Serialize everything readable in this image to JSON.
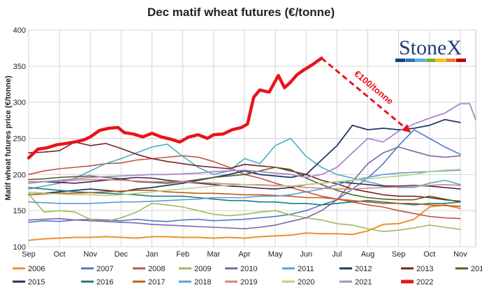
{
  "chart_data": {
    "type": "line",
    "title": "Dec matif wheat futures (€/tonne)",
    "ylabel": "Matif wheat futures price (€/tonne)",
    "xlabel": "",
    "ylim": [
      100,
      400
    ],
    "yticks": [
      100,
      150,
      200,
      250,
      300,
      350,
      400
    ],
    "xlim": [
      0,
      14.5
    ],
    "xticks": [
      "Sep",
      "Oct",
      "Nov",
      "Dec",
      "Jan",
      "Feb",
      "Mar",
      "Apr",
      "May",
      "Jun",
      "Jul",
      "Aug",
      "Sep",
      "Oct",
      "Nov"
    ],
    "grid": true,
    "legend_position": "bottom",
    "annotation": {
      "text": "€100/tonne",
      "from": [
        9.5,
        361
      ],
      "to": [
        12.4,
        258
      ]
    },
    "logo": "StoneX",
    "series": [
      {
        "name": "2006",
        "color": "#f28e2b",
        "width": 2,
        "x": [
          0,
          0.5,
          1,
          1.5,
          2,
          2.5,
          3,
          3.5,
          4,
          4.5,
          5,
          5.5,
          6,
          6.5,
          7,
          7.5,
          8,
          8.5,
          9,
          9.5,
          10,
          10.5,
          11,
          11.5,
          12,
          12.5,
          13,
          13.5,
          14
        ],
        "y": [
          109,
          111,
          112,
          113,
          113,
          114,
          113,
          112,
          114,
          114,
          113,
          113,
          112,
          113,
          112,
          114,
          115,
          116,
          119,
          118,
          118,
          117,
          122,
          131,
          132,
          138,
          155,
          158,
          153
        ]
      },
      {
        "name": "2007",
        "color": "#4e79c9",
        "width": 1.6,
        "x": [
          0,
          0.5,
          1,
          1.5,
          2,
          2.5,
          3,
          3.5,
          4,
          4.5,
          5,
          5.5,
          6,
          6.5,
          7,
          7.5,
          8,
          8.5,
          9,
          9.5,
          10,
          10.5,
          11,
          11.5,
          12,
          12.5,
          13,
          13.5,
          14
        ],
        "y": [
          134,
          136,
          135,
          137,
          138,
          137,
          136,
          138,
          136,
          135,
          137,
          138,
          136,
          137,
          138,
          140,
          142,
          145,
          150,
          158,
          165,
          180,
          195,
          215,
          240,
          262,
          250,
          238,
          228
        ]
      },
      {
        "name": "2008",
        "color": "#c0504d",
        "width": 1.6,
        "x": [
          0,
          0.5,
          1,
          1.5,
          2,
          2.5,
          3,
          3.5,
          4,
          4.5,
          5,
          5.5,
          6,
          6.5,
          7,
          7.5,
          8,
          8.5,
          9,
          9.5,
          10,
          10.5,
          11,
          11.5,
          12,
          12.5,
          13,
          13.5,
          14
        ],
        "y": [
          200,
          205,
          208,
          210,
          212,
          215,
          216,
          220,
          222,
          224,
          226,
          224,
          218,
          210,
          200,
          195,
          188,
          182,
          176,
          170,
          166,
          162,
          158,
          155,
          150,
          146,
          142,
          140,
          139
        ]
      },
      {
        "name": "2009",
        "color": "#9bbb59",
        "width": 1.6,
        "x": [
          0,
          0.5,
          1,
          1.5,
          2,
          2.5,
          3,
          3.5,
          4,
          4.5,
          5,
          5.5,
          6,
          6.5,
          7,
          7.5,
          8,
          8.5,
          9,
          9.5,
          10,
          10.5,
          11,
          11.5,
          12,
          12.5,
          13,
          13.5,
          14
        ],
        "y": [
          173,
          148,
          150,
          148,
          138,
          135,
          140,
          148,
          160,
          158,
          155,
          150,
          145,
          143,
          145,
          148,
          150,
          144,
          140,
          137,
          132,
          130,
          125,
          121,
          123,
          126,
          130,
          127,
          124
        ]
      },
      {
        "name": "2010",
        "color": "#8064a2",
        "width": 1.6,
        "x": [
          0,
          0.5,
          1,
          1.5,
          2,
          2.5,
          3,
          3.5,
          4,
          4.5,
          5,
          5.5,
          6,
          6.5,
          7,
          7.5,
          8,
          8.5,
          9,
          9.5,
          10,
          10.5,
          11,
          11.5,
          12,
          12.5,
          13,
          13.5,
          14
        ],
        "y": [
          137,
          138,
          139,
          137,
          136,
          135,
          134,
          133,
          131,
          130,
          129,
          128,
          127,
          126,
          125,
          127,
          130,
          135,
          140,
          150,
          165,
          190,
          215,
          230,
          238,
          232,
          226,
          224,
          226
        ]
      },
      {
        "name": "2011",
        "color": "#4bacc6",
        "width": 1.6,
        "x": [
          0,
          0.5,
          1,
          1.5,
          2,
          2.5,
          3,
          3.5,
          4,
          4.5,
          5,
          5.5,
          6,
          6.5,
          7,
          7.5,
          8,
          8.5,
          9,
          9.5,
          10,
          10.5,
          11,
          11.5,
          12,
          12.5,
          13,
          13.5,
          14
        ],
        "y": [
          180,
          184,
          188,
          195,
          205,
          215,
          222,
          230,
          238,
          242,
          225,
          210,
          200,
          205,
          222,
          215,
          240,
          250,
          225,
          210,
          200,
          195,
          190,
          185,
          182,
          182,
          188,
          192,
          186
        ]
      },
      {
        "name": "2012",
        "color": "#1f3864",
        "width": 1.8,
        "x": [
          0,
          0.5,
          1,
          1.5,
          2,
          2.5,
          3,
          3.5,
          4,
          4.5,
          5,
          5.5,
          6,
          6.5,
          7,
          7.5,
          8,
          8.5,
          9,
          9.5,
          10,
          10.5,
          11,
          11.5,
          12,
          12.5,
          13,
          13.5,
          14
        ],
        "y": [
          175,
          174,
          176,
          178,
          180,
          178,
          176,
          180,
          182,
          185,
          188,
          192,
          196,
          200,
          205,
          200,
          198,
          196,
          200,
          220,
          240,
          268,
          262,
          264,
          262,
          264,
          268,
          276,
          272
        ]
      },
      {
        "name": "2013",
        "color": "#7b2020",
        "width": 1.6,
        "x": [
          0,
          0.5,
          1,
          1.5,
          2,
          2.5,
          3,
          3.5,
          4,
          4.5,
          5,
          5.5,
          6,
          6.5,
          7,
          7.5,
          8,
          8.5,
          9,
          9.5,
          10,
          10.5,
          11,
          11.5,
          12,
          12.5,
          13,
          13.5,
          14
        ],
        "y": [
          230,
          231,
          233,
          245,
          240,
          243,
          236,
          228,
          222,
          218,
          215,
          212,
          210,
          208,
          214,
          212,
          210,
          205,
          200,
          192,
          187,
          180,
          176,
          172,
          170,
          170,
          168,
          165,
          163
        ]
      },
      {
        "name": "2014",
        "color": "#4f6228",
        "width": 1.6,
        "x": [
          0,
          0.5,
          1,
          1.5,
          2,
          2.5,
          3,
          3.5,
          4,
          4.5,
          5,
          5.5,
          6,
          6.5,
          7,
          7.5,
          8,
          8.5,
          9,
          9.5,
          10,
          10.5,
          11,
          11.5,
          12,
          12.5,
          13,
          13.5,
          14
        ],
        "y": [
          193,
          194,
          196,
          197,
          198,
          196,
          194,
          190,
          189,
          188,
          190,
          193,
          196,
          198,
          200,
          205,
          210,
          207,
          195,
          186,
          178,
          172,
          168,
          166,
          165,
          165,
          170,
          166,
          162
        ]
      },
      {
        "name": "2015",
        "color": "#3f1f5f",
        "width": 1.6,
        "x": [
          0,
          0.5,
          1,
          1.5,
          2,
          2.5,
          3,
          3.5,
          4,
          4.5,
          5,
          5.5,
          6,
          6.5,
          7,
          7.5,
          8,
          8.5,
          9,
          9.5,
          10,
          10.5,
          11,
          11.5,
          12,
          12.5,
          13,
          13.5,
          14
        ],
        "y": [
          190,
          190,
          189,
          188,
          190,
          192,
          194,
          196,
          195,
          192,
          190,
          188,
          186,
          184,
          183,
          181,
          180,
          182,
          186,
          188,
          190,
          188,
          186,
          184,
          184,
          185,
          184,
          182,
          180
        ]
      },
      {
        "name": "2016",
        "color": "#1f7a7a",
        "width": 1.6,
        "x": [
          0,
          0.5,
          1,
          1.5,
          2,
          2.5,
          3,
          3.5,
          4,
          4.5,
          5,
          5.5,
          6,
          6.5,
          7,
          7.5,
          8,
          8.5,
          9,
          9.5,
          10,
          10.5,
          11,
          11.5,
          12,
          12.5,
          13,
          13.5,
          14
        ],
        "y": [
          182,
          180,
          178,
          176,
          175,
          174,
          173,
          172,
          170,
          170,
          170,
          168,
          166,
          164,
          164,
          162,
          162,
          160,
          160,
          158,
          160,
          162,
          164,
          162,
          160,
          158,
          160,
          160,
          162
        ]
      },
      {
        "name": "2017",
        "color": "#c55a11",
        "width": 1.6,
        "x": [
          0,
          0.5,
          1,
          1.5,
          2,
          2.5,
          3,
          3.5,
          4,
          4.5,
          5,
          5.5,
          6,
          6.5,
          7,
          7.5,
          8,
          8.5,
          9,
          9.5,
          10,
          10.5,
          11,
          11.5,
          12,
          12.5,
          13,
          13.5,
          14
        ],
        "y": [
          172,
          173,
          174,
          174,
          175,
          176,
          177,
          178,
          178,
          176,
          175,
          174,
          174,
          173,
          172,
          172,
          171,
          170,
          168,
          168,
          166,
          164,
          162,
          160,
          160,
          160,
          158,
          157,
          156
        ]
      },
      {
        "name": "2018",
        "color": "#5b9bd5",
        "width": 1.6,
        "x": [
          0,
          0.5,
          1,
          1.5,
          2,
          2.5,
          3,
          3.5,
          4,
          4.5,
          5,
          5.5,
          6,
          6.5,
          7,
          7.5,
          8,
          8.5,
          9,
          9.5,
          10,
          10.5,
          11,
          11.5,
          12,
          12.5,
          13,
          13.5,
          14
        ],
        "y": [
          162,
          161,
          160,
          160,
          160,
          161,
          162,
          162,
          163,
          164,
          165,
          166,
          168,
          168,
          168,
          170,
          170,
          172,
          176,
          180,
          186,
          192,
          196,
          200,
          202,
          203,
          204,
          205,
          206
        ]
      },
      {
        "name": "2019",
        "color": "#d98078",
        "width": 1.6,
        "x": [
          0,
          0.5,
          1,
          1.5,
          2,
          2.5,
          3,
          3.5,
          4,
          4.5,
          5,
          5.5,
          6,
          6.5,
          7,
          7.5,
          8,
          8.5,
          9,
          9.5,
          10,
          10.5,
          11,
          11.5,
          12,
          12.5,
          13,
          13.5,
          14
        ],
        "y": [
          190,
          190,
          191,
          192,
          193,
          193,
          192,
          191,
          190,
          190,
          190,
          189,
          188,
          187,
          186,
          186,
          185,
          184,
          182,
          181,
          180,
          180,
          181,
          182,
          183,
          184,
          185,
          186,
          185
        ]
      },
      {
        "name": "2020",
        "color": "#b5d37e",
        "width": 1.6,
        "x": [
          0,
          0.5,
          1,
          1.5,
          2,
          2.5,
          3,
          3.5,
          4,
          4.5,
          5,
          5.5,
          6,
          6.5,
          7,
          7.5,
          8,
          8.5,
          9,
          9.5,
          10,
          10.5,
          11,
          11.5,
          12,
          12.5,
          13,
          13.5,
          14
        ],
        "y": [
          175,
          174,
          173,
          172,
          172,
          171,
          172,
          174,
          176,
          178,
          180,
          182,
          184,
          185,
          186,
          185,
          184,
          184,
          186,
          188,
          190,
          192,
          194,
          196,
          198,
          200,
          204,
          206,
          207
        ]
      },
      {
        "name": "2021",
        "color": "#a78bc9",
        "width": 1.8,
        "x": [
          0,
          0.5,
          1,
          1.5,
          2,
          2.5,
          3,
          3.5,
          4,
          4.5,
          5,
          5.5,
          6,
          6.5,
          7,
          7.5,
          8,
          8.5,
          9,
          9.5,
          10,
          10.5,
          11,
          11.5,
          12,
          12.5,
          13,
          13.5,
          14,
          14.3,
          14.5
        ],
        "y": [
          188,
          190,
          192,
          194,
          196,
          197,
          198,
          199,
          200,
          200,
          201,
          202,
          204,
          205,
          206,
          204,
          202,
          200,
          196,
          200,
          210,
          230,
          250,
          245,
          260,
          270,
          278,
          285,
          298,
          298,
          276
        ]
      },
      {
        "name": "2022",
        "color": "#e8141b",
        "width": 4.5,
        "x": [
          0,
          0.3,
          0.6,
          0.9,
          1.2,
          1.5,
          1.8,
          2,
          2.3,
          2.6,
          2.9,
          3.1,
          3.4,
          3.7,
          4,
          4.3,
          4.6,
          4.9,
          5.2,
          5.5,
          5.8,
          6,
          6.3,
          6.6,
          6.9,
          7.1,
          7.3,
          7.5,
          7.8,
          8.1,
          8.3,
          8.5,
          8.7,
          8.9,
          9.2,
          9.5
        ],
        "y": [
          223,
          235,
          237,
          241,
          243,
          245,
          248,
          252,
          261,
          264,
          265,
          258,
          256,
          252,
          257,
          252,
          249,
          245,
          252,
          255,
          250,
          255,
          256,
          262,
          265,
          270,
          307,
          317,
          314,
          337,
          320,
          328,
          338,
          344,
          352,
          361
        ]
      }
    ]
  }
}
